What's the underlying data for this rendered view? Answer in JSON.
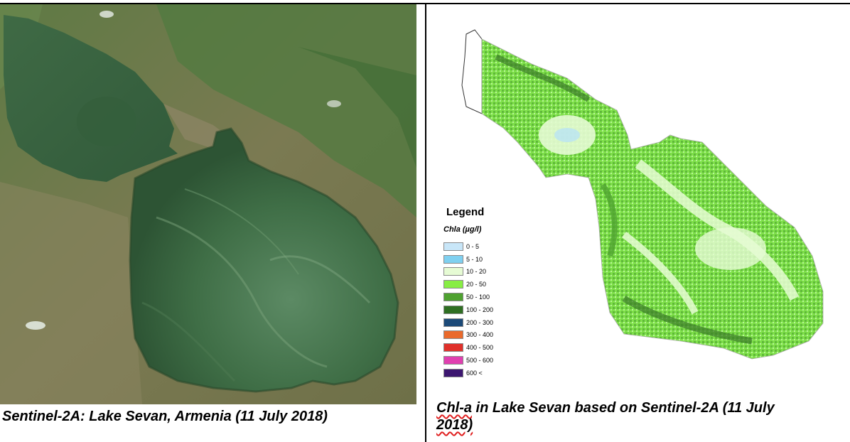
{
  "left": {
    "caption": "Sentinel-2A: Lake Sevan, Armenia (11 July 2018)"
  },
  "right": {
    "caption_word": "Chl-a",
    "caption_rest": " in Lake Sevan based on Sentinel-2A (11 July",
    "caption_line2": "2018)",
    "legend": {
      "title": "Legend",
      "subtitle": "Chla (µg/l)",
      "items": [
        {
          "label": "0 - 5",
          "color": "#c8e6f8"
        },
        {
          "label": "5 - 10",
          "color": "#7fd0f0"
        },
        {
          "label": "10 - 20",
          "color": "#e6fbd4"
        },
        {
          "label": "20 - 50",
          "color": "#88ee44"
        },
        {
          "label": "50 - 100",
          "color": "#4fa230"
        },
        {
          "label": "100 - 200",
          "color": "#2f6f22"
        },
        {
          "label": "200 - 300",
          "color": "#1c4a78"
        },
        {
          "label": "300 - 400",
          "color": "#ea6a2c"
        },
        {
          "label": "400 - 500",
          "color": "#e0302a"
        },
        {
          "label": "500 - 600",
          "color": "#e040b0"
        },
        {
          "label": "600 <",
          "color": "#3c1670"
        }
      ]
    }
  }
}
